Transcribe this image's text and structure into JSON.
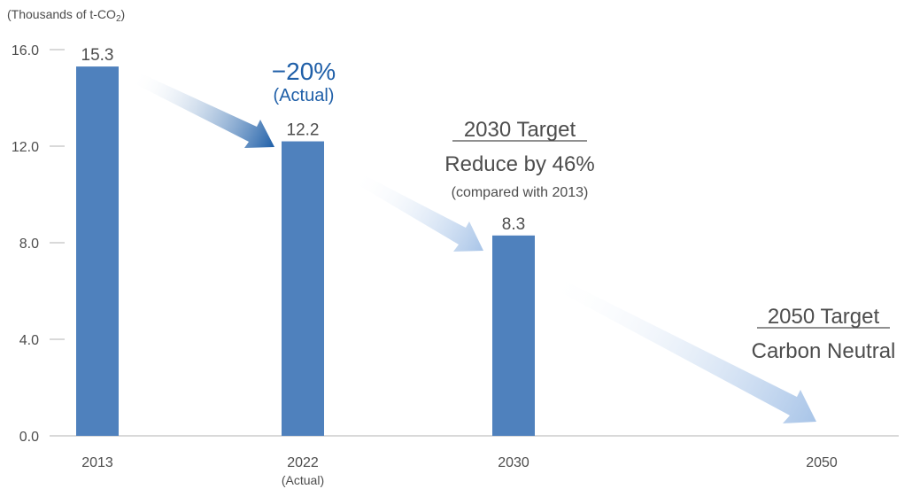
{
  "chart_data": {
    "type": "bar",
    "unit_label_prefix": "(Thousands of t-CO",
    "unit_label_sub": "2",
    "unit_label_suffix": ")",
    "ylim": [
      0,
      16
    ],
    "yticks": [
      "0.0",
      "4.0",
      "8.0",
      "12.0",
      "16.0"
    ],
    "categories": [
      "2013",
      "2022",
      "2030",
      "2050"
    ],
    "category_sublabels": [
      "",
      "(Actual)",
      "",
      ""
    ],
    "values": [
      15.3,
      12.2,
      8.3,
      0
    ],
    "value_labels": [
      "15.3",
      "12.2",
      "8.3",
      ""
    ],
    "bar_color": "#4f81bd",
    "annotations": {
      "actual_change": "−20%",
      "actual_note": "(Actual)",
      "target2030_title": "2030 Target",
      "target2030_line1": "Reduce by 46%",
      "target2030_line2": "(compared with 2013)",
      "target2050_title": "2050 Target",
      "target2050_line1": "Carbon Neutral"
    },
    "colors": {
      "accent": "#1f5fa8",
      "arrow_dark": "#1f5fa8",
      "arrow_light": "#a9c5e8",
      "text": "#4d4d4d",
      "axis": "#b3b3b3"
    }
  }
}
